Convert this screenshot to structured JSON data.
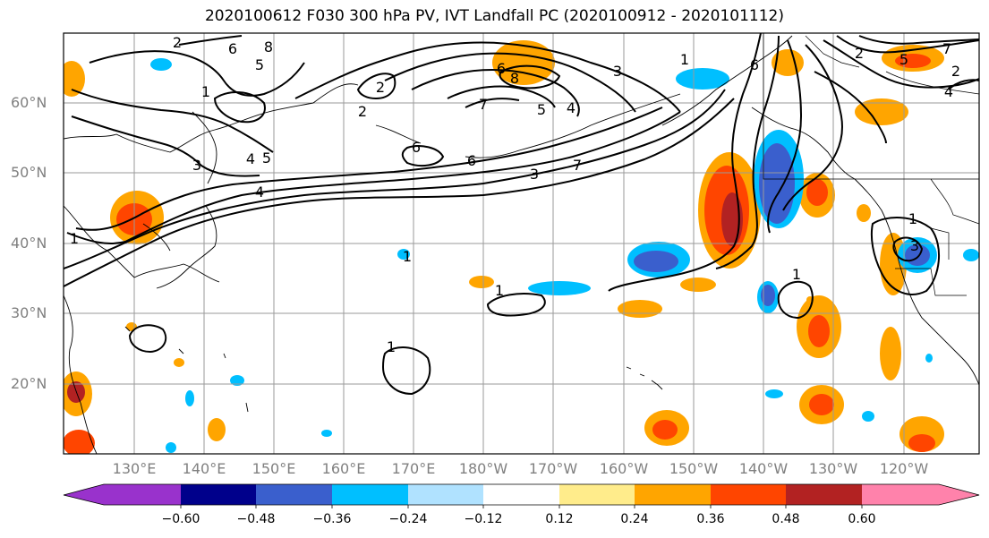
{
  "title": "2020100612 F030 300 hPa PV, IVT Landfall PC (2020100912 - 2020101112)",
  "lat_labels": [
    "60°N",
    "50°N",
    "40°N",
    "30°N",
    "20°N"
  ],
  "lon_labels": [
    "130°E",
    "140°E",
    "150°E",
    "160°E",
    "170°E",
    "180°W",
    "170°W",
    "160°W",
    "150°W",
    "140°W",
    "130°W",
    "120°W"
  ],
  "colorbar": {
    "ticks": [
      "−0.60",
      "−0.48",
      "−0.36",
      "−0.24",
      "−0.12",
      "0.12",
      "0.24",
      "0.36",
      "0.48",
      "0.60"
    ],
    "colors": [
      "#9932cc",
      "#00008b",
      "#3a5fcd",
      "#00bfff",
      "#b0e2ff",
      "#ffffff",
      "#ffec8b",
      "#ffa500",
      "#ff4500",
      "#b22222",
      "#ff82ab"
    ]
  },
  "contour_labels": [
    "1",
    "2",
    "3",
    "4",
    "5",
    "6",
    "8",
    "7",
    "1",
    "2",
    "3",
    "4",
    "5",
    "6",
    "7",
    "8",
    "3",
    "4",
    "5",
    "6",
    "2",
    "1",
    "1",
    "1",
    "1",
    "1",
    "2",
    "3",
    "4",
    "6",
    "5",
    "7",
    "2",
    "6",
    "1"
  ]
}
